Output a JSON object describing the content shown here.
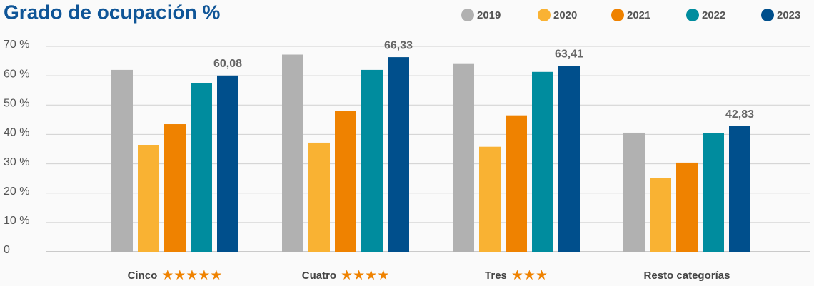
{
  "chart_data": {
    "type": "bar",
    "title": "Grado de ocupación %",
    "categories": [
      "Cinco",
      "Cuatro",
      "Tres",
      "Resto categorías"
    ],
    "category_stars": [
      "★★★★★",
      "★★★★",
      "★★★",
      null
    ],
    "series": [
      {
        "name": "2019",
        "color": "#b1b1b1",
        "values": [
          62.0,
          67.2,
          64.0,
          40.6
        ]
      },
      {
        "name": "2020",
        "color": "#f9b233",
        "values": [
          36.3,
          37.2,
          35.8,
          25.1
        ]
      },
      {
        "name": "2021",
        "color": "#ef8200",
        "values": [
          43.5,
          47.9,
          46.5,
          30.4
        ]
      },
      {
        "name": "2022",
        "color": "#008c9e",
        "values": [
          57.4,
          62.0,
          61.3,
          40.4
        ]
      },
      {
        "name": "2023",
        "color": "#004f8c",
        "values": [
          60.08,
          66.33,
          63.41,
          42.83
        ],
        "value_labels": [
          "60,08",
          "66,33",
          "63,41",
          "42,83"
        ]
      }
    ],
    "ylim": [
      0,
      70
    ],
    "yticks": [
      0,
      {
        "value": 10,
        "label": "10 %"
      },
      {
        "value": 20,
        "label": "20 %"
      },
      {
        "value": 30,
        "label": "30 %"
      },
      {
        "value": 40,
        "label": "40 %"
      },
      {
        "value": 50,
        "label": "50 %"
      },
      {
        "value": 60,
        "label": "60 %"
      },
      {
        "value": 70,
        "label": "70 %"
      }
    ],
    "grid": true,
    "legend": "top-right"
  }
}
